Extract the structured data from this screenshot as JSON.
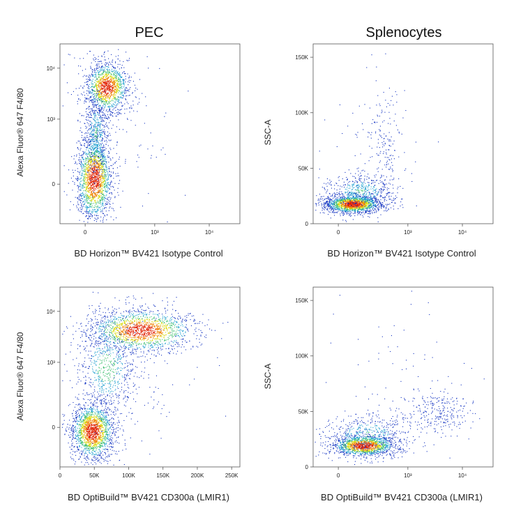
{
  "figure": {
    "column_titles": [
      "PEC",
      "Splenocytes"
    ]
  },
  "chart_data": [
    {
      "type": "scatter",
      "panel": "PEC - isotype control",
      "xlabel": "BD Horizon™ BV421 Isotype Control",
      "ylabel": "Alexa Fluor® 647 F4/80",
      "x_scale": "biexponential",
      "y_scale": "biexponential",
      "x_ticks": [
        "0",
        "10³",
        "10⁴"
      ],
      "y_ticks": [
        "0",
        "10³",
        "10⁴"
      ],
      "populations": [
        {
          "x_center": 120,
          "y_center": 8000,
          "note": "F4/80 high"
        },
        {
          "x_center": 100,
          "y_center": 0,
          "note": "F4/80 negative"
        }
      ]
    },
    {
      "type": "scatter",
      "panel": "Splenocytes - isotype control",
      "xlabel": "BD Horizon™ BV421 Isotype Control",
      "ylabel": "SSC-A",
      "x_scale": "biexponential",
      "y_scale": "linear",
      "x_ticks": [
        "0",
        "10³",
        "10⁴"
      ],
      "y_ticks": [
        "0",
        "50K",
        "100K",
        "150K"
      ],
      "ylim": [
        0,
        162000
      ],
      "populations": [
        {
          "x_center": 150,
          "y_center": 17000,
          "note": "main population"
        }
      ]
    },
    {
      "type": "scatter",
      "panel": "PEC - CD300a",
      "xlabel": "BD OptiBuild™ BV421 CD300a (LMIR1)",
      "ylabel": "Alexa Fluor® 647 F4/80",
      "x_scale": "linear",
      "y_scale": "biexponential",
      "x_ticks": [
        "0",
        "50K",
        "100K",
        "150K",
        "200K",
        "250K"
      ],
      "xlim": [
        0,
        262000
      ],
      "y_ticks": [
        "0",
        "10³",
        "10⁴"
      ],
      "populations": [
        {
          "x_center": 50000,
          "y_center": 0,
          "note": "F4/80 negative"
        },
        {
          "x_center": 130000,
          "y_center": 9000,
          "note": "F4/80 high CD300a+"
        }
      ]
    },
    {
      "type": "scatter",
      "panel": "Splenocytes - CD300a",
      "xlabel": "BD OptiBuild™ BV421 CD300a (LMIR1)",
      "ylabel": "SSC-A",
      "x_scale": "biexponential",
      "y_scale": "linear",
      "x_ticks": [
        "0",
        "10³",
        "10⁴"
      ],
      "y_ticks": [
        "0",
        "50K",
        "100K",
        "150K"
      ],
      "ylim": [
        0,
        162000
      ],
      "populations": [
        {
          "x_center": 150,
          "y_center": 17000,
          "note": "main population"
        },
        {
          "x_center": 4000,
          "y_center": 45000,
          "note": "CD300a+ population"
        }
      ]
    }
  ]
}
